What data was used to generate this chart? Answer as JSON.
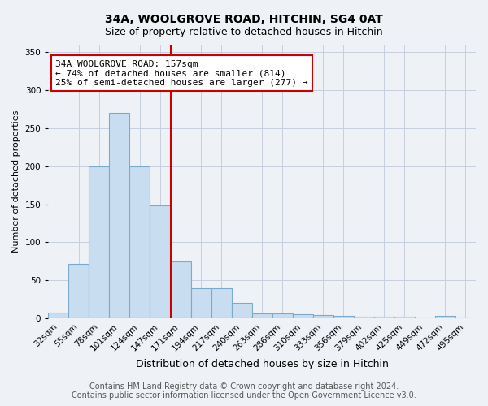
{
  "title": "34A, WOOLGROVE ROAD, HITCHIN, SG4 0AT",
  "subtitle": "Size of property relative to detached houses in Hitchin",
  "xlabel": "Distribution of detached houses by size in Hitchin",
  "ylabel": "Number of detached properties",
  "categories": [
    "32sqm",
    "55sqm",
    "78sqm",
    "101sqm",
    "124sqm",
    "147sqm",
    "171sqm",
    "194sqm",
    "217sqm",
    "240sqm",
    "263sqm",
    "286sqm",
    "310sqm",
    "333sqm",
    "356sqm",
    "379sqm",
    "402sqm",
    "425sqm",
    "449sqm",
    "472sqm",
    "495sqm"
  ],
  "values": [
    7,
    72,
    200,
    270,
    200,
    148,
    75,
    40,
    40,
    20,
    6,
    6,
    5,
    4,
    3,
    2,
    2,
    2,
    0,
    3,
    0
  ],
  "bar_color": "#c8ddf0",
  "bar_edge_color": "#7aaacc",
  "ylim": [
    0,
    360
  ],
  "yticks": [
    0,
    50,
    100,
    150,
    200,
    250,
    300,
    350
  ],
  "property_line_color": "#cc0000",
  "property_line_bin_index": 5,
  "annotation_text": "34A WOOLGROVE ROAD: 157sqm\n← 74% of detached houses are smaller (814)\n25% of semi-detached houses are larger (277) →",
  "annotation_box_color": "#ffffff",
  "annotation_box_edge_color": "#cc0000",
  "footer_line1": "Contains HM Land Registry data © Crown copyright and database right 2024.",
  "footer_line2": "Contains public sector information licensed under the Open Government Licence v3.0.",
  "background_color": "#eef2f7",
  "plot_background_color": "#eef2f7",
  "grid_color": "#c5cfe0",
  "title_fontsize": 10,
  "subtitle_fontsize": 9,
  "xlabel_fontsize": 9,
  "ylabel_fontsize": 8,
  "tick_fontsize": 7.5,
  "annotation_fontsize": 8,
  "footer_fontsize": 7
}
